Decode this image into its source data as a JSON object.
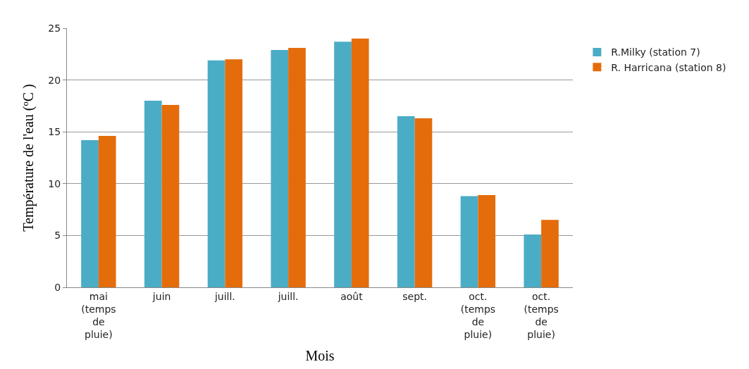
{
  "chart_data": {
    "type": "bar",
    "xlabel": "Mois",
    "ylabel": "Température de l'eau (ºC )",
    "categories": [
      "mai (temps de pluie)",
      "juin",
      "juill.",
      "juill.",
      "août",
      "sept.",
      "oct. (temps de pluie)",
      "oct. (temps de pluie)"
    ],
    "series": [
      {
        "name": "R.Milky (station 7)",
        "color": "#4bacc6",
        "values": [
          14.2,
          18.0,
          21.9,
          22.9,
          23.7,
          16.5,
          8.8,
          5.1
        ]
      },
      {
        "name": "R. Harricana (station 8)",
        "color": "#e46c0a",
        "values": [
          14.6,
          17.6,
          22.0,
          23.1,
          24.0,
          16.3,
          8.9,
          6.5
        ]
      }
    ],
    "ylim": [
      0,
      25
    ],
    "yticks": [
      0,
      5,
      10,
      15,
      20,
      25
    ],
    "grid": "y",
    "legend": "right"
  }
}
